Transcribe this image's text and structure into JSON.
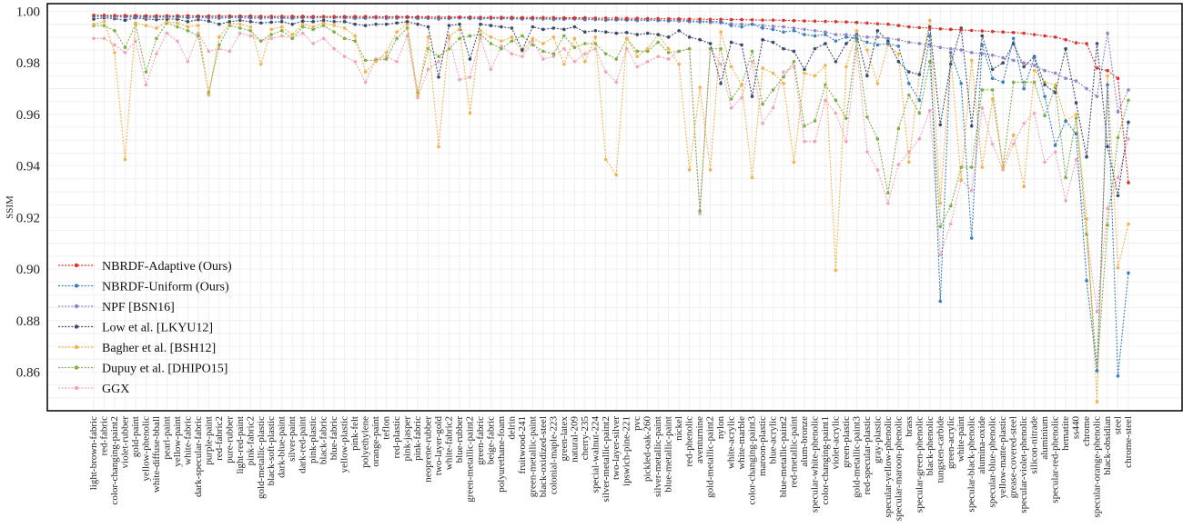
{
  "chart_data": {
    "type": "line",
    "ylabel": "SSIM",
    "ylim": [
      0.845,
      1.003
    ],
    "yticks": [
      0.86,
      0.88,
      0.9,
      0.92,
      0.94,
      0.96,
      0.98,
      1.0
    ],
    "grid": true,
    "legend_position": "bottom-left",
    "categories": [
      "light-brown-fabric",
      "red-fabric",
      "color-changing-paint2",
      "violet-rubber",
      "gold-paint",
      "yellow-phenolic",
      "white-diffuse-bball",
      "pearl-paint",
      "yellow-paint",
      "white-fabric",
      "dark-specular-fabric",
      "purple-paint",
      "red-fabric2",
      "pure-rubber",
      "light-red-paint",
      "pink-fabric2",
      "gold-metallic-plastic",
      "black-soft-plastic",
      "dark-blue-paint",
      "silver-paint",
      "dark-red-paint",
      "pink-plastic",
      "black-fabric",
      "blue-fabric",
      "yellow-plastic",
      "pink-felt",
      "polyethylene",
      "orange-paint",
      "teflon",
      "red-plastic",
      "pink-jasper",
      "pink-fabric",
      "neoprene-rubber",
      "two-layer-gold",
      "white-fabric2",
      "blue-rubber",
      "green-metallic-paint2",
      "green-fabric",
      "beige-fabric",
      "polyurethane-foam",
      "delrin",
      "fruitwood-241",
      "green-metallic-paint",
      "black-oxidized-steel",
      "colonial-maple-223",
      "green-latex",
      "natural-209",
      "cherry-235",
      "special-walnut-224",
      "silver-metallic-paint2",
      "two-layer-silver",
      "ipswich-pine-221",
      "pvc",
      "pickled-oak-260",
      "silver-metallic-paint",
      "blue-metallic-paint",
      "nickel",
      "red-phenolic",
      "aventurnine",
      "gold-metallic-paint2",
      "nylon",
      "white-acrylic",
      "white-marble",
      "color-changing-paint3",
      "maroon-plastic",
      "blue-acrylic",
      "blue-metallic-paint2",
      "red-metallic-paint",
      "alum-bronze",
      "specular-white-phenolic",
      "color-changing-paint1",
      "violet-acrylic",
      "green-plastic",
      "gold-metallic-paint3",
      "red-specular-plastic",
      "gray-plastic",
      "specular-yellow-phenolic",
      "specular-maroon-phenolic",
      "brass",
      "specular-green-phenolic",
      "black-phenolic",
      "tungsten-carbide",
      "green-acrylic",
      "white-paint",
      "specular-black-phenolic",
      "alumina-oxide",
      "specular-blue-phenolic",
      "yellow-matte-plastic",
      "grease-covered-steel",
      "specular-violet-phenolic",
      "silicon-nitrade",
      "aluminium",
      "specular-red-phenolic",
      "hematite",
      "ss440",
      "chrome",
      "specular-orange-phenolic",
      "black-obsidian",
      "steel",
      "chrome-steel"
    ],
    "series": [
      {
        "name": "NBRDF-Adaptive (Ours)",
        "color": "#d9342b",
        "values": [
          0.9985,
          0.9985,
          0.9984,
          0.9984,
          0.9984,
          0.9983,
          0.9983,
          0.9983,
          0.9983,
          0.9983,
          0.9982,
          0.9982,
          0.9982,
          0.9982,
          0.9982,
          0.9982,
          0.9981,
          0.9981,
          0.9981,
          0.9981,
          0.9981,
          0.998,
          0.998,
          0.998,
          0.998,
          0.998,
          0.998,
          0.9979,
          0.9979,
          0.9979,
          0.9979,
          0.9979,
          0.9978,
          0.9978,
          0.9978,
          0.9978,
          0.9978,
          0.9977,
          0.9977,
          0.9977,
          0.9977,
          0.9976,
          0.9976,
          0.9976,
          0.9976,
          0.9975,
          0.9975,
          0.9975,
          0.9974,
          0.9974,
          0.9974,
          0.9973,
          0.9973,
          0.9972,
          0.9972,
          0.9971,
          0.9971,
          0.997,
          0.997,
          0.9969,
          0.9969,
          0.9968,
          0.9968,
          0.9967,
          0.9966,
          0.9966,
          0.9965,
          0.9964,
          0.9963,
          0.9962,
          0.9961,
          0.996,
          0.9959,
          0.9957,
          0.9955,
          0.9952,
          0.995,
          0.9945,
          0.994,
          0.9937,
          0.9935,
          0.9932,
          0.993,
          0.9928,
          0.9926,
          0.9924,
          0.9922,
          0.992,
          0.9918,
          0.9915,
          0.991,
          0.9905,
          0.99,
          0.989,
          0.9878,
          0.9875,
          0.978,
          0.977,
          0.974,
          0.9335
        ]
      },
      {
        "name": "NBRDF-Uniform (Ours)",
        "color": "#3a7fb8",
        "values": [
          0.9982,
          0.9983,
          0.9982,
          0.9981,
          0.998,
          0.998,
          0.9979,
          0.998,
          0.998,
          0.9975,
          0.9979,
          0.9978,
          0.9976,
          0.9978,
          0.9978,
          0.9977,
          0.9976,
          0.9977,
          0.9976,
          0.9976,
          0.9978,
          0.9977,
          0.9978,
          0.9977,
          0.9978,
          0.9976,
          0.9975,
          0.9977,
          0.9976,
          0.9977,
          0.9978,
          0.9975,
          0.9974,
          0.9973,
          0.9974,
          0.9977,
          0.9974,
          0.9972,
          0.9975,
          0.9974,
          0.9973,
          0.9972,
          0.9973,
          0.9973,
          0.9972,
          0.9972,
          0.9973,
          0.997,
          0.997,
          0.9968,
          0.9969,
          0.9968,
          0.9967,
          0.9968,
          0.9966,
          0.9965,
          0.9968,
          0.9963,
          0.9962,
          0.9961,
          0.996,
          0.9945,
          0.994,
          0.995,
          0.9935,
          0.993,
          0.992,
          0.9925,
          0.991,
          0.9905,
          0.991,
          0.9885,
          0.99,
          0.9895,
          0.988,
          0.987,
          0.9875,
          0.9865,
          0.972,
          0.9655,
          0.9905,
          0.8875,
          0.984,
          0.972,
          0.912,
          0.987,
          0.974,
          0.9725,
          0.9895,
          0.97,
          0.982,
          0.967,
          0.948,
          0.9575,
          0.9525,
          0.8955,
          0.8605,
          0.9715,
          0.8585,
          0.8985
        ]
      },
      {
        "name": "NPF [BSN16]",
        "color": "#8f86c8",
        "values": [
          0.998,
          0.998,
          0.9978,
          0.9977,
          0.9978,
          0.9975,
          0.9977,
          0.9977,
          0.9977,
          0.9975,
          0.9976,
          0.9974,
          0.9973,
          0.9976,
          0.9975,
          0.9974,
          0.9973,
          0.9974,
          0.9973,
          0.9972,
          0.9975,
          0.9974,
          0.9976,
          0.9975,
          0.9974,
          0.9972,
          0.9973,
          0.9974,
          0.9972,
          0.9973,
          0.9975,
          0.9972,
          0.9973,
          0.997,
          0.9972,
          0.9974,
          0.9972,
          0.9971,
          0.9972,
          0.9972,
          0.9971,
          0.997,
          0.997,
          0.997,
          0.9968,
          0.9969,
          0.997,
          0.9967,
          0.9968,
          0.9965,
          0.9966,
          0.9965,
          0.9964,
          0.9965,
          0.9964,
          0.9962,
          0.9962,
          0.996,
          0.9958,
          0.9957,
          0.9955,
          0.9952,
          0.995,
          0.995,
          0.9945,
          0.9942,
          0.994,
          0.9935,
          0.993,
          0.9925,
          0.992,
          0.991,
          0.991,
          0.9905,
          0.99,
          0.99,
          0.9895,
          0.989,
          0.988,
          0.9875,
          0.987,
          0.986,
          0.9855,
          0.985,
          0.984,
          0.9835,
          0.983,
          0.982,
          0.981,
          0.98,
          0.979,
          0.977,
          0.976,
          0.974,
          0.973,
          0.97,
          0.967,
          0.9915,
          0.961,
          0.9695
        ]
      },
      {
        "name": "Low et al. [LKYU12]",
        "color": "#3b4a6b",
        "values": [
          0.997,
          0.9975,
          0.9972,
          0.9965,
          0.9975,
          0.997,
          0.9968,
          0.997,
          0.997,
          0.996,
          0.9968,
          0.9962,
          0.995,
          0.996,
          0.9965,
          0.996,
          0.9955,
          0.9958,
          0.996,
          0.995,
          0.9962,
          0.996,
          0.9965,
          0.996,
          0.996,
          0.995,
          0.9945,
          0.995,
          0.995,
          0.9955,
          0.996,
          0.995,
          0.994,
          0.9745,
          0.9945,
          0.995,
          0.9815,
          0.995,
          0.9945,
          0.994,
          0.9935,
          0.985,
          0.994,
          0.993,
          0.9935,
          0.993,
          0.994,
          0.992,
          0.9925,
          0.992,
          0.9915,
          0.9918,
          0.991,
          0.9915,
          0.991,
          0.99,
          0.9925,
          0.99,
          0.989,
          0.9875,
          0.972,
          0.988,
          0.987,
          0.967,
          0.989,
          0.988,
          0.9855,
          0.9845,
          0.9775,
          0.9855,
          0.9875,
          0.9805,
          0.9875,
          0.991,
          0.975,
          0.9925,
          0.9885,
          0.9805,
          0.9765,
          0.9755,
          0.994,
          0.956,
          0.9795,
          0.9935,
          0.9555,
          0.9905,
          0.9775,
          0.98,
          0.9875,
          0.9785,
          0.9825,
          0.9715,
          0.9685,
          0.9855,
          0.9645,
          0.9435,
          0.9875,
          0.9475,
          0.9285,
          0.957
        ]
      },
      {
        "name": "Bagher et al. [BSH12]",
        "color": "#f2b24a",
        "values": [
          0.995,
          0.996,
          0.984,
          0.9425,
          0.9955,
          0.9945,
          0.9935,
          0.996,
          0.9955,
          0.994,
          0.9945,
          0.9675,
          0.99,
          0.9955,
          0.995,
          0.994,
          0.9795,
          0.993,
          0.994,
          0.991,
          0.995,
          0.994,
          0.9955,
          0.9945,
          0.9935,
          0.9905,
          0.9765,
          0.9805,
          0.984,
          0.992,
          0.995,
          0.9675,
          0.99,
          0.9475,
          0.9905,
          0.993,
          0.9605,
          0.9925,
          0.99,
          0.9885,
          0.99,
          0.9845,
          0.9895,
          0.9875,
          0.99,
          0.9795,
          0.9895,
          0.9805,
          0.99,
          0.9425,
          0.9365,
          0.9895,
          0.9825,
          0.9855,
          0.991,
          0.9855,
          0.9795,
          0.9385,
          0.9705,
          0.9385,
          0.992,
          0.9785,
          0.9715,
          0.9355,
          0.978,
          0.976,
          0.972,
          0.9415,
          0.976,
          0.975,
          0.979,
          0.8995,
          0.9785,
          0.9925,
          0.985,
          0.972,
          0.987,
          0.9835,
          0.9415,
          0.9755,
          0.9965,
          0.9255,
          0.9825,
          0.9345,
          0.981,
          0.9395,
          0.966,
          0.9395,
          0.952,
          0.932,
          0.977,
          0.9725,
          0.9715,
          0.9575,
          0.96,
          0.9195,
          0.8485,
          0.975,
          0.9005,
          0.9175
        ]
      },
      {
        "name": "Dupuy et al. [DHIPO15]",
        "color": "#7fae49",
        "values": [
          0.9945,
          0.9945,
          0.9925,
          0.986,
          0.995,
          0.9765,
          0.9895,
          0.9955,
          0.994,
          0.9925,
          0.9905,
          0.9685,
          0.987,
          0.9945,
          0.9935,
          0.9925,
          0.9885,
          0.991,
          0.9925,
          0.9895,
          0.994,
          0.993,
          0.9945,
          0.992,
          0.9895,
          0.9885,
          0.981,
          0.981,
          0.9815,
          0.9895,
          0.9935,
          0.9685,
          0.9855,
          0.9825,
          0.9855,
          0.9895,
          0.9905,
          0.991,
          0.9875,
          0.9855,
          0.9885,
          0.9905,
          0.987,
          0.9845,
          0.9835,
          0.9905,
          0.986,
          0.9875,
          0.9875,
          0.9835,
          0.9815,
          0.9895,
          0.9845,
          0.9845,
          0.988,
          0.984,
          0.9845,
          0.9855,
          0.9225,
          0.9855,
          0.9855,
          0.966,
          0.9715,
          0.9845,
          0.964,
          0.9695,
          0.9745,
          0.9805,
          0.9555,
          0.9575,
          0.9715,
          0.9655,
          0.9585,
          0.9885,
          0.959,
          0.9505,
          0.9295,
          0.9545,
          0.9675,
          0.9605,
          0.9805,
          0.9165,
          0.9245,
          0.9395,
          0.9395,
          0.9695,
          0.9695,
          0.9395,
          0.9725,
          0.9725,
          0.9725,
          0.9595,
          0.9705,
          0.9355,
          0.9585,
          0.9135,
          0.8605,
          0.917,
          0.951,
          0.9655
        ]
      },
      {
        "name": "GGX",
        "color": "#f0a4b7",
        "values": [
          0.9895,
          0.9895,
          0.987,
          0.984,
          0.9885,
          0.9715,
          0.9835,
          0.9915,
          0.9885,
          0.9805,
          0.9915,
          0.9845,
          0.9855,
          0.9845,
          0.9915,
          0.9905,
          0.9885,
          0.9895,
          0.9905,
          0.9895,
          0.9915,
          0.9875,
          0.9895,
          0.9855,
          0.9825,
          0.9805,
          0.9725,
          0.9815,
          0.9825,
          0.9805,
          0.9905,
          0.9665,
          0.9775,
          0.9805,
          0.9895,
          0.9735,
          0.9745,
          0.9895,
          0.9775,
          0.9865,
          0.9835,
          0.9825,
          0.9885,
          0.9815,
          0.9825,
          0.9855,
          0.9805,
          0.9835,
          0.9855,
          0.9765,
          0.9725,
          0.9855,
          0.9785,
          0.9805,
          0.9825,
          0.9815,
          0.9845,
          0.9855,
          0.9215,
          0.9855,
          0.9795,
          0.9625,
          0.9665,
          0.9805,
          0.9565,
          0.9625,
          0.9765,
          0.9785,
          0.9495,
          0.9495,
          0.9655,
          0.9605,
          0.9495,
          0.9855,
          0.9455,
          0.9385,
          0.9255,
          0.9405,
          0.9455,
          0.9505,
          0.9615,
          0.9055,
          0.9175,
          0.9345,
          0.9305,
          0.9625,
          0.9485,
          0.9385,
          0.9485,
          0.9565,
          0.9605,
          0.9415,
          0.9455,
          0.9265,
          0.9425,
          0.9135,
          0.8835,
          0.9235,
          0.9355,
          0.9505
        ]
      }
    ]
  }
}
